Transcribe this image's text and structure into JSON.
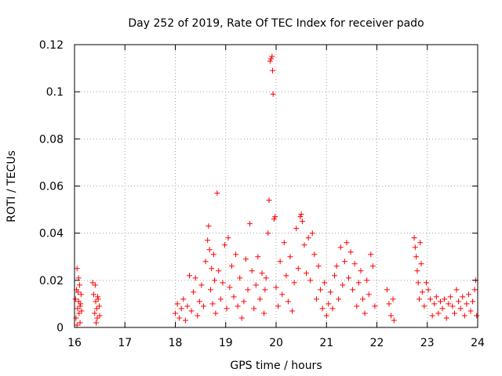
{
  "chart_data": {
    "type": "scatter",
    "title": "Day 252 of 2019, Rate Of TEC Index for receiver pado",
    "xlabel": "GPS time / hours",
    "ylabel": "ROTI / TECUs",
    "xlim": [
      16,
      24
    ],
    "ylim": [
      0,
      0.12
    ],
    "xticks": [
      "16",
      "17",
      "18",
      "19",
      "20",
      "21",
      "22",
      "23",
      "24"
    ],
    "yticks": [
      "0",
      "0.02",
      "0.04",
      "0.06",
      "0.08",
      "0.1",
      "0.12"
    ],
    "grid": true,
    "marker": "+",
    "color": "#ff0000",
    "series": [
      {
        "name": "ROTI",
        "points": [
          [
            16.02,
            0.012
          ],
          [
            16.03,
            0.004
          ],
          [
            16.05,
            0.025
          ],
          [
            16.06,
            0.008
          ],
          [
            16.07,
            0.015
          ],
          [
            16.08,
            0.021
          ],
          [
            16.09,
            0.006
          ],
          [
            16.1,
            0.018
          ],
          [
            16.11,
            0.002
          ],
          [
            16.12,
            0.01
          ],
          [
            16.13,
            0.014
          ],
          [
            16.14,
            0.007
          ],
          [
            16.05,
            0.001
          ],
          [
            16.08,
            0.011
          ],
          [
            16.11,
            0.009
          ],
          [
            16.04,
            0.016
          ],
          [
            16.36,
            0.019
          ],
          [
            16.38,
            0.014
          ],
          [
            16.4,
            0.006
          ],
          [
            16.41,
            0.018
          ],
          [
            16.42,
            0.011
          ],
          [
            16.44,
            0.008
          ],
          [
            16.45,
            0.004
          ],
          [
            16.47,
            0.012
          ],
          [
            16.49,
            0.009
          ],
          [
            16.5,
            0.005
          ],
          [
            16.43,
            0.002
          ],
          [
            16.46,
            0.013
          ],
          [
            18.0,
            0.006
          ],
          [
            18.04,
            0.01
          ],
          [
            18.08,
            0.004
          ],
          [
            18.12,
            0.008
          ],
          [
            18.16,
            0.012
          ],
          [
            18.2,
            0.003
          ],
          [
            18.24,
            0.009
          ],
          [
            18.28,
            0.022
          ],
          [
            18.32,
            0.007
          ],
          [
            18.36,
            0.015
          ],
          [
            18.4,
            0.021
          ],
          [
            18.44,
            0.005
          ],
          [
            18.48,
            0.011
          ],
          [
            18.52,
            0.018
          ],
          [
            18.56,
            0.009
          ],
          [
            18.6,
            0.028
          ],
          [
            18.64,
            0.037
          ],
          [
            18.66,
            0.043
          ],
          [
            18.68,
            0.033
          ],
          [
            18.7,
            0.016
          ],
          [
            18.72,
            0.025
          ],
          [
            18.74,
            0.01
          ],
          [
            18.76,
            0.031
          ],
          [
            18.78,
            0.02
          ],
          [
            18.8,
            0.006
          ],
          [
            18.83,
            0.057
          ],
          [
            18.86,
            0.024
          ],
          [
            18.9,
            0.012
          ],
          [
            18.94,
            0.019
          ],
          [
            18.98,
            0.035
          ],
          [
            19.02,
            0.008
          ],
          [
            19.05,
            0.038
          ],
          [
            19.08,
            0.017
          ],
          [
            19.12,
            0.026
          ],
          [
            19.16,
            0.013
          ],
          [
            19.2,
            0.031
          ],
          [
            19.24,
            0.009
          ],
          [
            19.28,
            0.021
          ],
          [
            19.32,
            0.004
          ],
          [
            19.36,
            0.011
          ],
          [
            19.4,
            0.029
          ],
          [
            19.44,
            0.016
          ],
          [
            19.48,
            0.044
          ],
          [
            19.52,
            0.024
          ],
          [
            19.56,
            0.008
          ],
          [
            19.6,
            0.018
          ],
          [
            19.64,
            0.03
          ],
          [
            19.68,
            0.012
          ],
          [
            19.72,
            0.023
          ],
          [
            19.76,
            0.006
          ],
          [
            19.78,
            0.016
          ],
          [
            19.8,
            0.021
          ],
          [
            19.84,
            0.04
          ],
          [
            19.86,
            0.054
          ],
          [
            19.88,
            0.113
          ],
          [
            19.9,
            0.114
          ],
          [
            19.92,
            0.115
          ],
          [
            19.93,
            0.109
          ],
          [
            19.94,
            0.099
          ],
          [
            19.96,
            0.046
          ],
          [
            19.98,
            0.047
          ],
          [
            20.0,
            0.017
          ],
          [
            20.04,
            0.009
          ],
          [
            20.08,
            0.028
          ],
          [
            20.12,
            0.014
          ],
          [
            20.16,
            0.036
          ],
          [
            20.2,
            0.022
          ],
          [
            20.24,
            0.011
          ],
          [
            20.28,
            0.03
          ],
          [
            20.32,
            0.007
          ],
          [
            20.36,
            0.019
          ],
          [
            20.4,
            0.042
          ],
          [
            20.44,
            0.025
          ],
          [
            20.48,
            0.047
          ],
          [
            20.5,
            0.048
          ],
          [
            20.52,
            0.045
          ],
          [
            20.56,
            0.035
          ],
          [
            20.6,
            0.023
          ],
          [
            20.64,
            0.038
          ],
          [
            20.68,
            0.02
          ],
          [
            20.72,
            0.04
          ],
          [
            20.76,
            0.031
          ],
          [
            20.8,
            0.012
          ],
          [
            20.84,
            0.026
          ],
          [
            20.88,
            0.016
          ],
          [
            20.92,
            0.008
          ],
          [
            20.96,
            0.019
          ],
          [
            21.0,
            0.005
          ],
          [
            21.04,
            0.01
          ],
          [
            21.08,
            0.015
          ],
          [
            21.12,
            0.008
          ],
          [
            21.16,
            0.022
          ],
          [
            21.2,
            0.026
          ],
          [
            21.24,
            0.012
          ],
          [
            21.28,
            0.034
          ],
          [
            21.32,
            0.018
          ],
          [
            21.36,
            0.028
          ],
          [
            21.4,
            0.036
          ],
          [
            21.44,
            0.021
          ],
          [
            21.48,
            0.032
          ],
          [
            21.52,
            0.016
          ],
          [
            21.56,
            0.027
          ],
          [
            21.6,
            0.009
          ],
          [
            21.64,
            0.019
          ],
          [
            21.68,
            0.024
          ],
          [
            21.72,
            0.012
          ],
          [
            21.76,
            0.006
          ],
          [
            21.8,
            0.02
          ],
          [
            21.84,
            0.014
          ],
          [
            21.88,
            0.031
          ],
          [
            21.92,
            0.026
          ],
          [
            21.96,
            0.009
          ],
          [
            22.2,
            0.016
          ],
          [
            22.24,
            0.01
          ],
          [
            22.28,
            0.005
          ],
          [
            22.32,
            0.012
          ],
          [
            22.34,
            0.003
          ],
          [
            22.74,
            0.038
          ],
          [
            22.76,
            0.034
          ],
          [
            22.78,
            0.03
          ],
          [
            22.8,
            0.024
          ],
          [
            22.82,
            0.019
          ],
          [
            22.84,
            0.012
          ],
          [
            22.86,
            0.036
          ],
          [
            22.88,
            0.027
          ],
          [
            22.9,
            0.015
          ],
          [
            22.94,
            0.009
          ],
          [
            22.98,
            0.019
          ],
          [
            23.02,
            0.016
          ],
          [
            23.06,
            0.012
          ],
          [
            23.1,
            0.005
          ],
          [
            23.14,
            0.01
          ],
          [
            23.18,
            0.013
          ],
          [
            23.22,
            0.006
          ],
          [
            23.26,
            0.011
          ],
          [
            23.3,
            0.008
          ],
          [
            23.34,
            0.012
          ],
          [
            23.38,
            0.004
          ],
          [
            23.42,
            0.01
          ],
          [
            23.46,
            0.013
          ],
          [
            23.5,
            0.009
          ],
          [
            23.54,
            0.006
          ],
          [
            23.58,
            0.016
          ],
          [
            23.62,
            0.011
          ],
          [
            23.66,
            0.008
          ],
          [
            23.7,
            0.013
          ],
          [
            23.74,
            0.005
          ],
          [
            23.78,
            0.01
          ],
          [
            23.82,
            0.014
          ],
          [
            23.86,
            0.007
          ],
          [
            23.9,
            0.011
          ],
          [
            23.94,
            0.016
          ],
          [
            23.96,
            0.02
          ],
          [
            23.98,
            0.005
          ]
        ]
      }
    ]
  }
}
